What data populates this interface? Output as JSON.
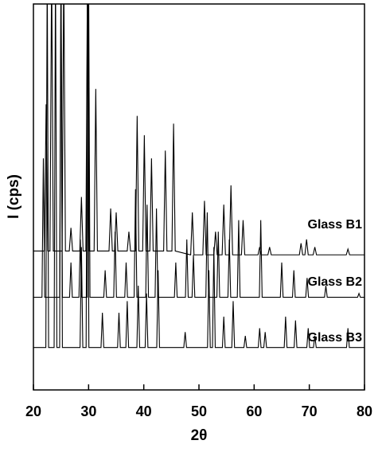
{
  "chart_data": {
    "type": "line",
    "xlabel": "2θ",
    "ylabel": "I (cps)",
    "xlim": [
      20,
      80
    ],
    "xticks": [
      20,
      30,
      40,
      50,
      60,
      70,
      80
    ],
    "ylim": [
      0,
      100
    ],
    "series": [
      {
        "name": "Glass B1",
        "color": "#000000",
        "x": [
          20,
          22.0,
          22.3,
          22.6,
          23.0,
          23.3,
          23.6,
          25.2,
          25.5,
          25.8,
          26.5,
          26.8,
          27.1,
          28.4,
          28.7,
          29.0,
          29.5,
          29.8,
          30.1,
          31.0,
          31.3,
          31.6,
          33.7,
          34.0,
          34.3,
          34.7,
          35.0,
          35.3,
          37.0,
          37.3,
          37.6,
          38.5,
          38.8,
          39.1,
          39.8,
          40.1,
          40.4,
          41.1,
          41.4,
          41.7,
          43.6,
          43.9,
          44.2,
          45.1,
          45.4,
          45.7,
          48.5,
          48.8,
          49.1,
          50.7,
          51.0,
          51.3,
          52.7,
          53.0,
          53.3,
          54.2,
          54.5,
          54.8,
          55.5,
          55.8,
          56.1,
          57.7,
          58.0,
          58.3,
          60.7,
          61.0,
          61.3,
          62.5,
          62.8,
          63.1,
          68.2,
          68.5,
          68.8,
          69.2,
          69.5,
          69.8,
          70.7,
          71.0,
          71.3,
          76.7,
          77.0,
          77.3,
          80
        ],
        "values": [
          36,
          36,
          74,
          36,
          36,
          110,
          36,
          36,
          110,
          36,
          36,
          42,
          36,
          36,
          50,
          36,
          36,
          110,
          36,
          36,
          78,
          36,
          36,
          47,
          36,
          36,
          46,
          36,
          36,
          41,
          36,
          36,
          71,
          36,
          36,
          66,
          36,
          36,
          60,
          36,
          36,
          62,
          36,
          36,
          69,
          36,
          35,
          46,
          35,
          35,
          49,
          35,
          35,
          41,
          35,
          35,
          48,
          35,
          35,
          53,
          35,
          35,
          44,
          35,
          35,
          37,
          35,
          35,
          37,
          35,
          35,
          38,
          35,
          35,
          39,
          35,
          35,
          37,
          35,
          35,
          36.5,
          35,
          35
        ]
      },
      {
        "name": "Glass B2",
        "color": "#000000",
        "x": [
          20,
          21.55,
          21.8,
          22.05,
          24.75,
          25.0,
          25.25,
          26.55,
          26.8,
          27.05,
          28.25,
          28.5,
          28.75,
          29.75,
          30.0,
          30.25,
          32.75,
          33.0,
          33.25,
          34.55,
          34.8,
          35.05,
          36.55,
          36.8,
          37.05,
          38.25,
          38.5,
          38.75,
          40.35,
          40.6,
          40.85,
          42.05,
          42.3,
          42.55,
          45.55,
          45.8,
          46.05,
          47.55,
          47.8,
          48.05,
          48.75,
          49.0,
          49.25,
          51.25,
          51.5,
          51.75,
          53.25,
          53.5,
          53.75,
          55.25,
          55.5,
          55.75,
          56.95,
          57.2,
          57.45,
          60.95,
          61.2,
          61.45,
          64.75,
          65.0,
          65.25,
          66.95,
          67.2,
          67.45,
          69.35,
          69.6,
          69.85,
          72.75,
          73.0,
          73.25,
          78.75,
          79.0,
          79.25,
          80
        ],
        "values": [
          24,
          24,
          60,
          24,
          24,
          110,
          24,
          24,
          33,
          24,
          24,
          39,
          24,
          24,
          110,
          24,
          24,
          31,
          24,
          24,
          41,
          24,
          24,
          33,
          24,
          24,
          52,
          24,
          24,
          48,
          24,
          24,
          47,
          24,
          24,
          33,
          24,
          24,
          39,
          24,
          24,
          35,
          24,
          24,
          46,
          24,
          24,
          41,
          24,
          24,
          39,
          24,
          24,
          44,
          24,
          24,
          44,
          24,
          24,
          33,
          24,
          24,
          31,
          24,
          24,
          29,
          24,
          24,
          27,
          24,
          24,
          25,
          24,
          24
        ]
      },
      {
        "name": "Glass B3",
        "color": "#000000",
        "x": [
          20,
          22.25,
          22.5,
          22.75,
          23.75,
          24.0,
          24.25,
          24.75,
          25.0,
          25.25,
          28.45,
          28.7,
          28.95,
          29.55,
          29.8,
          30.05,
          32.25,
          32.5,
          32.75,
          35.25,
          35.5,
          35.75,
          36.75,
          37.0,
          37.25,
          38.75,
          39.0,
          39.25,
          40.25,
          40.5,
          40.75,
          42.35,
          42.6,
          42.85,
          47.25,
          47.5,
          47.75,
          51.55,
          51.8,
          52.05,
          52.45,
          52.7,
          52.95,
          54.25,
          54.5,
          54.75,
          55.95,
          56.2,
          56.45,
          58.15,
          58.4,
          58.65,
          60.75,
          61.0,
          61.25,
          61.75,
          62.0,
          62.25,
          65.45,
          65.7,
          65.95,
          67.25,
          67.5,
          67.75,
          69.55,
          69.8,
          70.05,
          70.75,
          71.0,
          71.25,
          76.75,
          77.0,
          77.25,
          80
        ],
        "values": [
          11,
          11,
          110,
          11,
          11,
          110,
          11,
          11,
          110,
          11,
          11,
          37,
          11,
          11,
          110,
          11,
          11,
          20,
          11,
          11,
          20,
          11,
          11,
          23,
          11,
          11,
          27,
          11,
          11,
          25,
          11,
          11,
          31,
          11,
          11,
          15,
          11,
          11,
          31,
          11,
          11,
          37,
          11,
          11,
          19,
          11,
          11,
          23,
          11,
          11,
          14,
          11,
          11,
          16,
          11,
          11,
          15,
          11,
          11,
          19,
          11,
          11,
          18,
          11,
          11,
          16,
          11,
          11,
          14,
          11,
          11,
          16,
          11,
          11
        ]
      }
    ]
  }
}
